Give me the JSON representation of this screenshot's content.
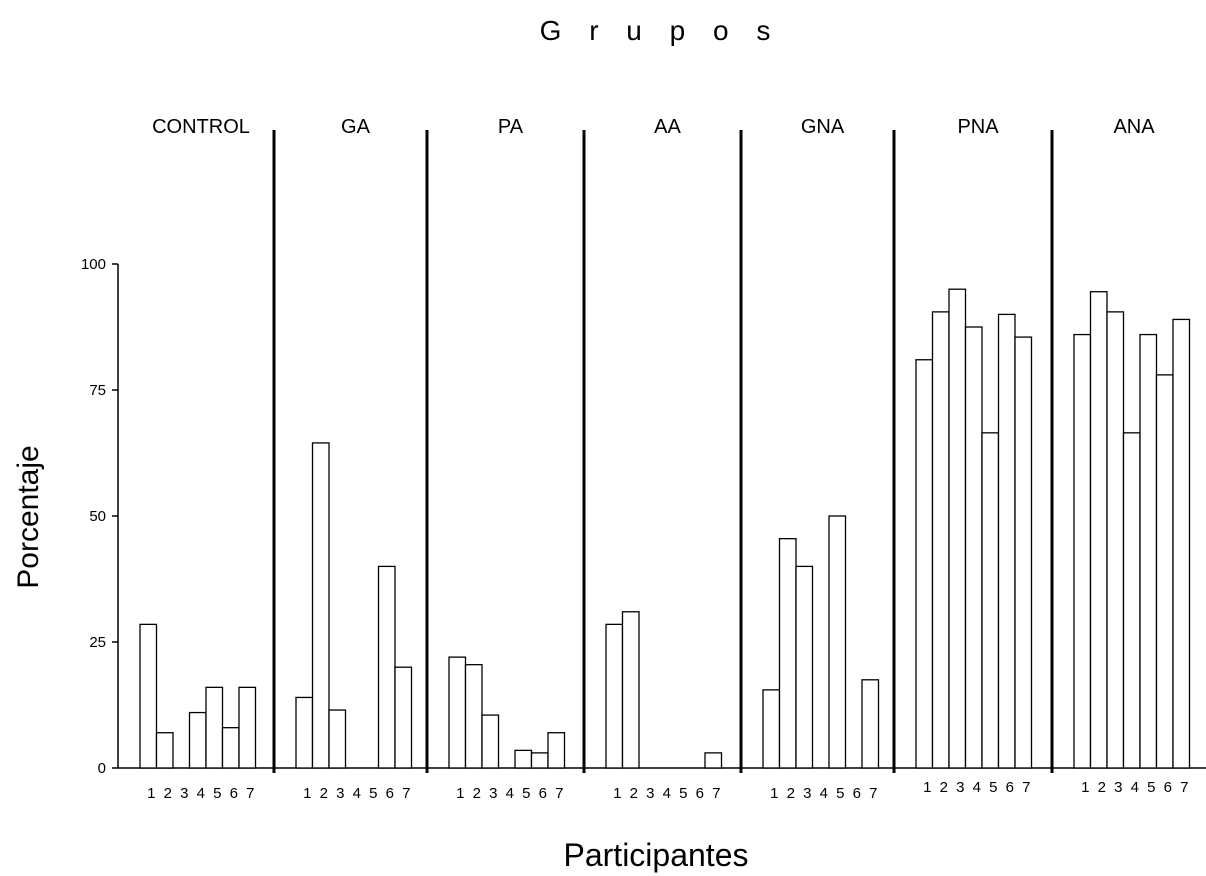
{
  "chart_data": {
    "type": "bar",
    "title": "G r u p o s",
    "xlabel": "Participantes",
    "ylabel": "Porcentaje",
    "ylim": [
      0,
      100
    ],
    "yticks": [
      0,
      25,
      50,
      75,
      100
    ],
    "categories": [
      "1",
      "2",
      "3",
      "4",
      "5",
      "6",
      "7"
    ],
    "groups": [
      {
        "name": "CONTROL",
        "values": [
          28.5,
          7,
          0,
          11,
          16,
          8,
          16
        ]
      },
      {
        "name": "GA",
        "values": [
          14,
          64.5,
          11.5,
          0,
          0,
          40,
          20
        ]
      },
      {
        "name": "PA",
        "values": [
          22,
          20.5,
          10.5,
          0,
          3.5,
          3,
          7
        ]
      },
      {
        "name": "AA",
        "values": [
          28.5,
          31,
          0,
          0,
          0,
          0,
          3
        ]
      },
      {
        "name": "GNA",
        "values": [
          15.5,
          45.5,
          40,
          0,
          50,
          0,
          17.5
        ]
      },
      {
        "name": "PNA",
        "values": [
          81,
          90.5,
          95,
          87.5,
          66.5,
          90,
          85.5
        ]
      },
      {
        "name": "ANA",
        "values": [
          86,
          94.5,
          90.5,
          66.5,
          86,
          78,
          89
        ]
      }
    ],
    "grid": false,
    "legend": "none"
  }
}
